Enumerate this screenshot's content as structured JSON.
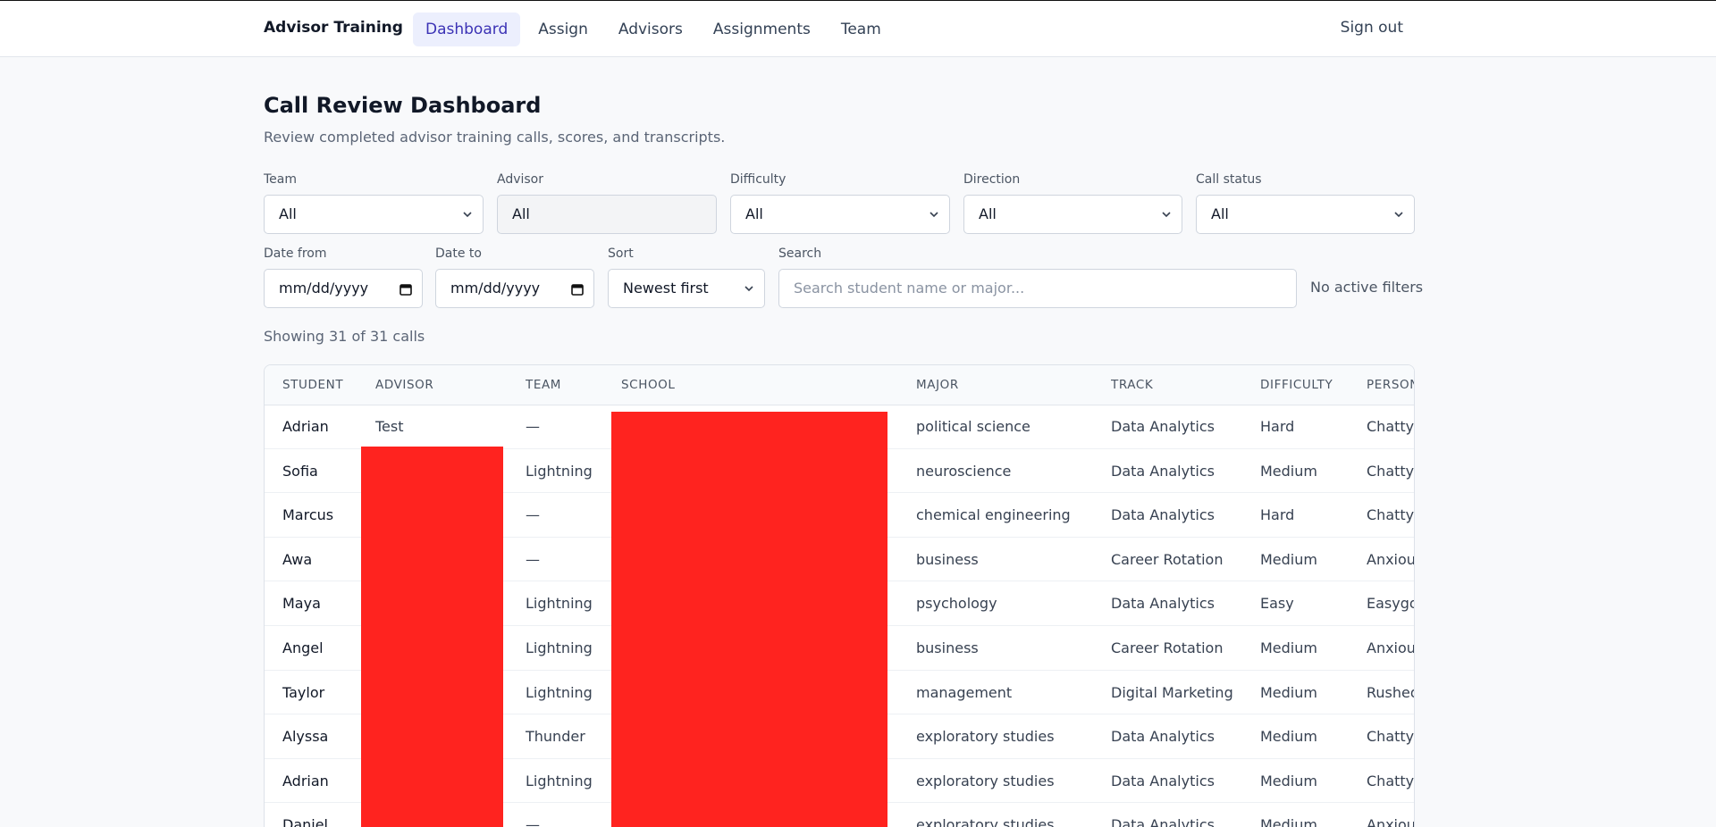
{
  "nav": {
    "brand": "Advisor Training",
    "links": [
      "Dashboard",
      "Assign",
      "Advisors",
      "Assignments",
      "Team"
    ],
    "active": 0,
    "sign_out": "Sign out"
  },
  "header": {
    "title": "Call Review Dashboard",
    "subtitle": "Review completed advisor training calls, scores, and transcripts."
  },
  "filters": {
    "row1": [
      {
        "label": "Team",
        "value": "All",
        "kind": "select"
      },
      {
        "label": "Advisor",
        "value": "All",
        "kind": "input"
      },
      {
        "label": "Difficulty",
        "value": "All",
        "kind": "select"
      },
      {
        "label": "Direction",
        "value": "All",
        "kind": "select"
      },
      {
        "label": "Call status",
        "value": "All",
        "kind": "select"
      }
    ],
    "row2": [
      {
        "label": "Date from",
        "value": "mm/dd/yyyy",
        "kind": "date"
      },
      {
        "label": "Date to",
        "value": "mm/dd/yyyy",
        "kind": "date"
      },
      {
        "label": "Sort",
        "value": "Newest first",
        "kind": "select"
      },
      {
        "label": "Search",
        "placeholder": "Search student name or major...",
        "kind": "search"
      }
    ],
    "status": "No active filters"
  },
  "summary": "Showing 31 of 31 calls",
  "table": {
    "columns": [
      "Student",
      "Advisor",
      "Team",
      "School",
      "Major",
      "Track",
      "Difficulty",
      "Persona"
    ],
    "rows": [
      [
        "Adrian",
        "Test",
        "—",
        null,
        "political science",
        "Data Analytics",
        "Hard",
        "Chatty"
      ],
      [
        "Sofia",
        null,
        "Lightning",
        null,
        "neuroscience",
        "Data Analytics",
        "Medium",
        "Chatty"
      ],
      [
        "Marcus",
        null,
        "—",
        null,
        "chemical engineering",
        "Data Analytics",
        "Hard",
        "Chatty"
      ],
      [
        "Awa",
        null,
        "—",
        null,
        "business",
        "Career Rotation",
        "Medium",
        "Anxious"
      ],
      [
        "Maya",
        null,
        "Lightning",
        null,
        "psychology",
        "Data Analytics",
        "Easy",
        "Easygoing"
      ],
      [
        "Angel",
        null,
        "Lightning",
        null,
        "business",
        "Career Rotation",
        "Medium",
        "Anxious"
      ],
      [
        "Taylor",
        null,
        "Lightning",
        null,
        "management",
        "Digital Marketing",
        "Medium",
        "Rushed"
      ],
      [
        "Alyssa",
        null,
        "Thunder",
        null,
        "exploratory studies",
        "Data Analytics",
        "Medium",
        "Chatty"
      ],
      [
        "Adrian",
        null,
        "Lightning",
        null,
        "exploratory studies",
        "Data Analytics",
        "Medium",
        "Chatty"
      ],
      [
        "Daniel",
        null,
        "—",
        null,
        "exploratory studies",
        "Data Analytics",
        "Medium",
        "Anxious"
      ]
    ]
  }
}
